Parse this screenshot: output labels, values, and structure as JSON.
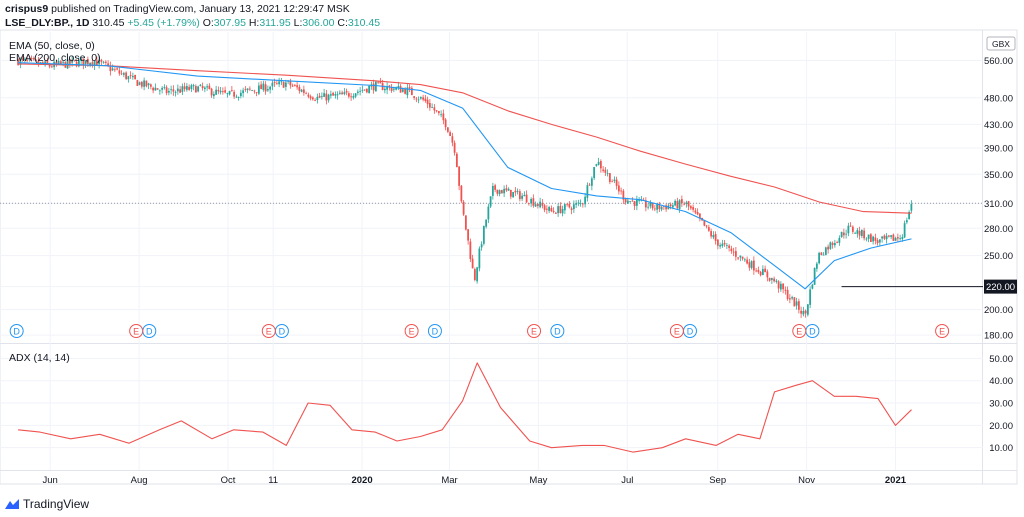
{
  "header": {
    "publisher": "crispus9",
    "published_text": "published on TradingView.com, January 13, 2021 12:29:47 MSK",
    "symbol": "LSE_DLY:BP., 1D",
    "last": "310.45",
    "change": "+5.45 (+1.79%)",
    "o_label": "O:",
    "o": "307.95",
    "h_label": "H:",
    "h": "311.95",
    "l_label": "L:",
    "l": "306.00",
    "c_label": "C:",
    "c": "310.45"
  },
  "indicators": {
    "ema50": "EMA (50, close, 0)",
    "ema200": "EMA (200, close, 0)",
    "adx": "ADX (14, 14)"
  },
  "currency": "GBX",
  "price_tag": "220.00",
  "brand": "TradingView",
  "colors": {
    "up": "#26a69a",
    "down": "#ef5350",
    "ema50": "#2196f3",
    "ema200": "#ef5350",
    "adx": "#ef5350",
    "grid": "#f0f3fa",
    "text": "#131722",
    "dividend": "#2196f3",
    "earnings": "#ef5350"
  },
  "chart_data": [
    {
      "type": "candlestick",
      "title": "LSE_DLY:BP., 1D",
      "ylabel": "GBX",
      "ylim": [
        175,
        630
      ],
      "y_scale": "log",
      "yticks": [
        180,
        200,
        220,
        250,
        280,
        310,
        350,
        390,
        430,
        480,
        560
      ],
      "xticks": [
        "Jun",
        "Aug",
        "Oct",
        "11",
        "2020",
        "Mar",
        "May",
        "Jul",
        "Sep",
        "Nov",
        "2021"
      ],
      "horizontal_line": 220,
      "last_price_line": 310.45,
      "series": [
        {
          "name": "EMA (50, close, 0)",
          "x": [
            "2019-05-10",
            "2019-07-10",
            "2019-09-10",
            "2019-11-10",
            "2020-01-10",
            "2020-02-10",
            "2020-03-10",
            "2020-04-10",
            "2020-05-10",
            "2020-06-10",
            "2020-07-10",
            "2020-08-10",
            "2020-09-10",
            "2020-10-10",
            "2020-10-31",
            "2020-11-20",
            "2020-12-15",
            "2021-01-12"
          ],
          "values": [
            555,
            548,
            525,
            515,
            505,
            495,
            460,
            360,
            330,
            320,
            315,
            300,
            275,
            240,
            218,
            245,
            258,
            268
          ]
        },
        {
          "name": "EMA (200, close, 0)",
          "x": [
            "2019-05-10",
            "2019-07-10",
            "2019-09-10",
            "2019-11-10",
            "2020-01-10",
            "2020-02-10",
            "2020-03-10",
            "2020-04-10",
            "2020-05-10",
            "2020-06-10",
            "2020-07-10",
            "2020-08-10",
            "2020-09-10",
            "2020-10-10",
            "2020-11-10",
            "2020-12-10",
            "2021-01-12"
          ],
          "values": [
            552,
            548,
            537,
            527,
            515,
            507,
            490,
            455,
            430,
            408,
            385,
            365,
            347,
            332,
            312,
            300,
            298
          ]
        }
      ],
      "price_points": {
        "x": [
          "2019-05-10",
          "2019-06-01",
          "2019-07-01",
          "2019-08-01",
          "2019-08-20",
          "2019-09-10",
          "2019-10-01",
          "2019-10-20",
          "2019-11-10",
          "2019-12-01",
          "2019-12-20",
          "2020-01-10",
          "2020-02-01",
          "2020-02-15",
          "2020-02-28",
          "2020-03-05",
          "2020-03-09",
          "2020-03-18",
          "2020-03-31",
          "2020-04-20",
          "2020-05-10",
          "2020-05-31",
          "2020-06-10",
          "2020-06-30",
          "2020-07-20",
          "2020-08-10",
          "2020-08-31",
          "2020-09-20",
          "2020-10-10",
          "2020-10-31",
          "2020-11-09",
          "2020-11-30",
          "2020-12-20",
          "2021-01-05",
          "2021-01-12"
        ],
        "close": [
          560,
          548,
          560,
          510,
          492,
          500,
          485,
          497,
          510,
          480,
          485,
          505,
          495,
          470,
          430,
          385,
          310,
          225,
          330,
          320,
          300,
          310,
          370,
          315,
          305,
          310,
          265,
          245,
          225,
          195,
          250,
          280,
          265,
          270,
          310
        ]
      },
      "markers": {
        "dividend": [
          "2019-05-09",
          "2019-08-08",
          "2019-11-07",
          "2020-02-20",
          "2020-05-14",
          "2020-08-13",
          "2020-11-05"
        ],
        "earnings": [
          "2019-07-30",
          "2019-10-29",
          "2020-02-04",
          "2020-04-28",
          "2020-08-04",
          "2020-10-27",
          "2021-02-02"
        ]
      }
    },
    {
      "type": "line",
      "title": "ADX (14, 14)",
      "ylim": [
        0,
        56
      ],
      "yticks": [
        10,
        20,
        30,
        40,
        50
      ],
      "series": [
        {
          "name": "ADX (14, 14)",
          "x": [
            "2019-05-10",
            "2019-05-25",
            "2019-06-15",
            "2019-07-05",
            "2019-07-25",
            "2019-08-15",
            "2019-08-30",
            "2019-09-20",
            "2019-10-05",
            "2019-10-25",
            "2019-11-10",
            "2019-11-25",
            "2019-12-10",
            "2019-12-25",
            "2020-01-10",
            "2020-01-25",
            "2020-02-10",
            "2020-02-25",
            "2020-03-10",
            "2020-03-20",
            "2020-04-05",
            "2020-04-25",
            "2020-05-10",
            "2020-05-31",
            "2020-06-15",
            "2020-07-05",
            "2020-07-25",
            "2020-08-10",
            "2020-08-31",
            "2020-09-15",
            "2020-09-30",
            "2020-10-10",
            "2020-10-25",
            "2020-11-05",
            "2020-11-20",
            "2020-12-05",
            "2020-12-20",
            "2021-01-01",
            "2021-01-12"
          ],
          "values": [
            18,
            17,
            14,
            16,
            12,
            18,
            22,
            14,
            18,
            17,
            11,
            30,
            29,
            18,
            17,
            13,
            15,
            18,
            31,
            48,
            28,
            13,
            10,
            11,
            11,
            8,
            10,
            14,
            11,
            16,
            14,
            35,
            38,
            40,
            33,
            33,
            32,
            20,
            27
          ]
        }
      ]
    }
  ]
}
